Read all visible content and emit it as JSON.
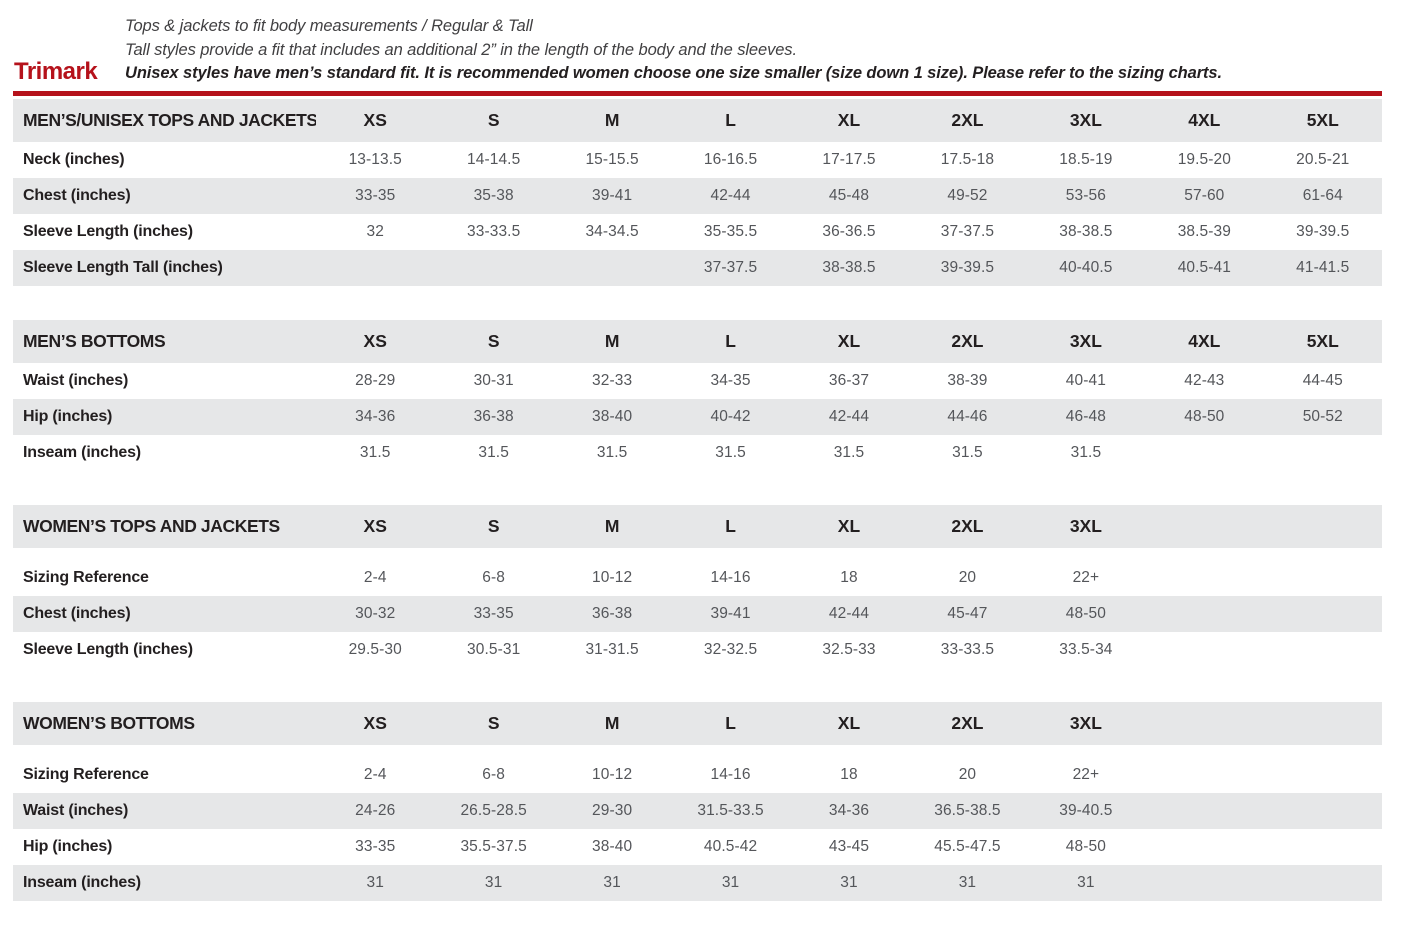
{
  "brand": {
    "logo": "Trimark"
  },
  "colors": {
    "accent_red": "#b5121b",
    "row_gray": "#e6e7e8"
  },
  "intro": {
    "line1": "Tops & jackets to fit body measurements / Regular & Tall",
    "line2": "Tall styles provide a fit that includes an additional 2” in the length of the body and the sleeves.",
    "line3": "Unisex styles have men’s standard fit. It is recommended women choose one size smaller (size down 1 size).  Please refer to the sizing charts."
  },
  "tables": [
    {
      "title": "MEN’S/UNISEX TOPS AND JACKETS",
      "sizes": [
        "XS",
        "S",
        "M",
        "L",
        "XL",
        "2XL",
        "3XL",
        "4XL",
        "5XL"
      ],
      "header_spacer": false,
      "rows": [
        {
          "label": "Neck (inches)",
          "values": [
            "13-13.5",
            "14-14.5",
            "15-15.5",
            "16-16.5",
            "17-17.5",
            "17.5-18",
            "18.5-19",
            "19.5-20",
            "20.5-21"
          ]
        },
        {
          "label": "Chest (inches)",
          "values": [
            "33-35",
            "35-38",
            "39-41",
            "42-44",
            "45-48",
            "49-52",
            "53-56",
            "57-60",
            "61-64"
          ]
        },
        {
          "label": "Sleeve Length (inches)",
          "values": [
            "32",
            "33-33.5",
            "34-34.5",
            "35-35.5",
            "36-36.5",
            "37-37.5",
            "38-38.5",
            "38.5-39",
            "39-39.5"
          ]
        },
        {
          "label": "Sleeve Length Tall (inches)",
          "values": [
            "",
            "",
            "",
            "37-37.5",
            "38-38.5",
            "39-39.5",
            "40-40.5",
            "40.5-41",
            "41-41.5"
          ]
        }
      ]
    },
    {
      "title": "MEN’S BOTTOMS",
      "sizes": [
        "XS",
        "S",
        "M",
        "L",
        "XL",
        "2XL",
        "3XL",
        "4XL",
        "5XL"
      ],
      "header_spacer": false,
      "rows": [
        {
          "label": "Waist (inches)",
          "values": [
            "28-29",
            "30-31",
            "32-33",
            "34-35",
            "36-37",
            "38-39",
            "40-41",
            "42-43",
            "44-45"
          ]
        },
        {
          "label": "Hip (inches)",
          "values": [
            "34-36",
            "36-38",
            "38-40",
            "40-42",
            "42-44",
            "44-46",
            "46-48",
            "48-50",
            "50-52"
          ]
        },
        {
          "label": "Inseam (inches)",
          "values": [
            "31.5",
            "31.5",
            "31.5",
            "31.5",
            "31.5",
            "31.5",
            "31.5",
            "",
            ""
          ]
        }
      ]
    },
    {
      "title": "WOMEN’S TOPS AND JACKETS",
      "sizes": [
        "XS",
        "S",
        "M",
        "L",
        "XL",
        "2XL",
        "3XL"
      ],
      "header_spacer": true,
      "rows": [
        {
          "label": "Sizing Reference",
          "values": [
            "2-4",
            "6-8",
            "10-12",
            "14-16",
            "18",
            "20",
            "22+"
          ]
        },
        {
          "label": "Chest (inches)",
          "values": [
            "30-32",
            "33-35",
            "36-38",
            "39-41",
            "42-44",
            "45-47",
            "48-50"
          ]
        },
        {
          "label": "Sleeve Length (inches)",
          "values": [
            "29.5-30",
            "30.5-31",
            "31-31.5",
            "32-32.5",
            "32.5-33",
            "33-33.5",
            "33.5-34"
          ]
        }
      ]
    },
    {
      "title": "WOMEN’S BOTTOMS",
      "sizes": [
        "XS",
        "S",
        "M",
        "L",
        "XL",
        "2XL",
        "3XL"
      ],
      "header_spacer": true,
      "rows": [
        {
          "label": "Sizing Reference",
          "values": [
            "2-4",
            "6-8",
            "10-12",
            "14-16",
            "18",
            "20",
            "22+"
          ]
        },
        {
          "label": "Waist (inches)",
          "values": [
            "24-26",
            "26.5-28.5",
            "29-30",
            "31.5-33.5",
            "34-36",
            "36.5-38.5",
            "39-40.5"
          ]
        },
        {
          "label": "Hip (inches)",
          "values": [
            "33-35",
            "35.5-37.5",
            "38-40",
            "40.5-42",
            "43-45",
            "45.5-47.5",
            "48-50"
          ]
        },
        {
          "label": "Inseam (inches)",
          "values": [
            "31",
            "31",
            "31",
            "31",
            "31",
            "31",
            "31"
          ]
        }
      ]
    }
  ]
}
